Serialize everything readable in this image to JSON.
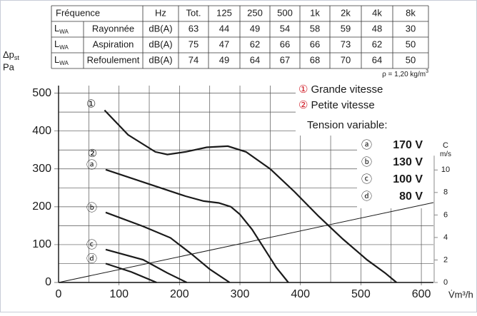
{
  "table": {
    "header": [
      "Fréquence",
      "Hz",
      "Tot.",
      "125",
      "250",
      "500",
      "1k",
      "2k",
      "4k",
      "8k"
    ],
    "lead": "L",
    "lead_sub": "WA",
    "rows": [
      [
        "Rayonnée",
        "dB(A)",
        63,
        44,
        49,
        54,
        58,
        59,
        48,
        30
      ],
      [
        "Aspiration",
        "dB(A)",
        75,
        47,
        62,
        66,
        66,
        73,
        62,
        50
      ],
      [
        "Refoulement",
        "dB(A)",
        74,
        49,
        64,
        67,
        68,
        70,
        64,
        50
      ]
    ],
    "density": "ρ = 1,20 kg/m",
    "density_sup": "3"
  },
  "chart_data": {
    "type": "line",
    "ylabel": "Δp",
    "ylabel_sub": "st",
    "yunit": "Pa",
    "xlabel": "V̇m³/h",
    "xlim": [
      0,
      620
    ],
    "ylim": [
      0,
      520
    ],
    "xticks": [
      0,
      100,
      200,
      300,
      400,
      500,
      600
    ],
    "yticks": [
      0,
      100,
      200,
      300,
      400,
      500
    ],
    "x_minor_grid": [
      50,
      150,
      250,
      350,
      450,
      550
    ],
    "y_minor_grid": [
      50,
      150,
      250,
      350,
      450
    ],
    "y2lim": [
      0,
      17.5
    ],
    "y2ticks": [
      0,
      2,
      4,
      6,
      8,
      10
    ],
    "y2label": "C",
    "y2unit": "m/s",
    "legend": [
      {
        "symbol": "①",
        "text": "Grande vitesse"
      },
      {
        "symbol": "②",
        "text": "Petite vitesse"
      }
    ],
    "tension_title": "Tension variable:",
    "tension": [
      {
        "symbol": "ⓐ",
        "text": "170 V"
      },
      {
        "symbol": "ⓑ",
        "text": "130 V"
      },
      {
        "symbol": "ⓒ",
        "text": "100 V"
      },
      {
        "symbol": "ⓓ",
        "text": "80 V"
      }
    ],
    "series": [
      {
        "name": "①",
        "color": "#1a1a1a",
        "x": [
          76,
          115,
          160,
          180,
          210,
          245,
          280,
          310,
          350,
          390,
          430,
          470,
          510,
          540,
          559
        ],
        "values": [
          455,
          390,
          345,
          338,
          345,
          357,
          360,
          345,
          300,
          240,
          175,
          115,
          60,
          25,
          0
        ]
      },
      {
        "name": "ⓐ",
        "speed": "②",
        "color": "#1a1a1a",
        "x": [
          78,
          140,
          210,
          240,
          265,
          285,
          300,
          320,
          340,
          360,
          380
        ],
        "values": [
          298,
          265,
          228,
          215,
          210,
          200,
          180,
          140,
          90,
          40,
          0
        ]
      },
      {
        "name": "ⓑ",
        "color": "#1a1a1a",
        "x": [
          78,
          140,
          185,
          220,
          250,
          283
        ],
        "values": [
          185,
          148,
          118,
          75,
          35,
          0
        ]
      },
      {
        "name": "ⓒ",
        "color": "#1a1a1a",
        "x": [
          78,
          140,
          180,
          212
        ],
        "values": [
          87,
          60,
          25,
          0
        ]
      },
      {
        "name": "ⓓ",
        "color": "#1a1a1a",
        "x": [
          78,
          120,
          162
        ],
        "values": [
          50,
          28,
          0
        ]
      },
      {
        "axis": "y2",
        "color": "#1a1a1a",
        "x": [
          0,
          620
        ],
        "values": [
          0,
          7.1
        ]
      }
    ]
  }
}
